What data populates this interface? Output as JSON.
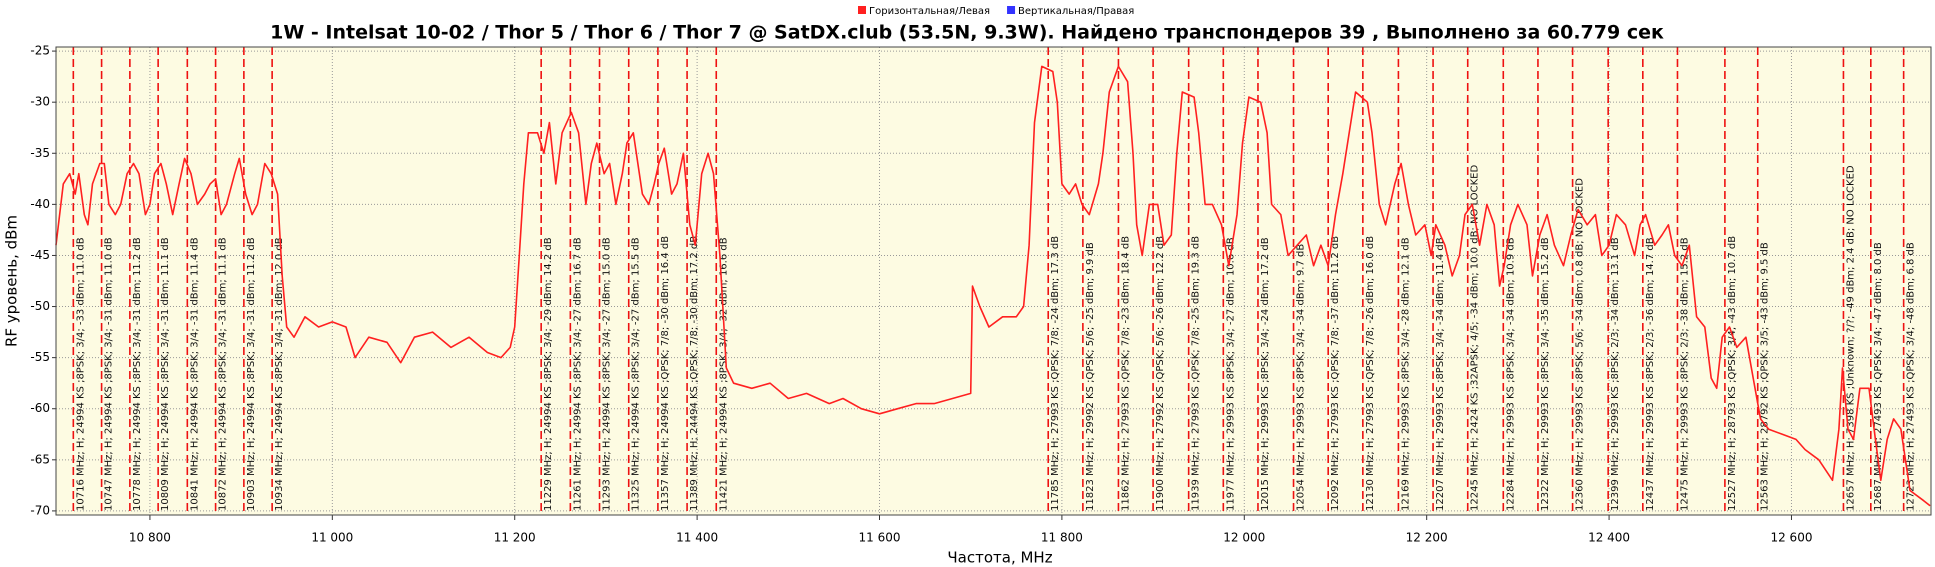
{
  "chart_data": {
    "type": "line",
    "title": "1W - Intelsat 10-02 / Thor 5 / Thor 6 / Thor 7 @ SatDX.club (53.5N, 9.3W). Найдено транспондеров 39 , Выполнено за 60.779 сек",
    "x_label": "Частота, MHz",
    "y_label": "RF уровень, dBm",
    "legend": "top",
    "grid": true,
    "xlim": [
      10697,
      12753
    ],
    "ylim": [
      -70.4,
      -24.6
    ],
    "xticks": [
      {
        "value": 10800,
        "label": "10 800"
      },
      {
        "value": 11000,
        "label": "11 000"
      },
      {
        "value": 11200,
        "label": "11 200"
      },
      {
        "value": 11400,
        "label": "11 400"
      },
      {
        "value": 11600,
        "label": "11 600"
      },
      {
        "value": 11800,
        "label": "11 800"
      },
      {
        "value": 12000,
        "label": "12 000"
      },
      {
        "value": 12200,
        "label": "12 200"
      },
      {
        "value": 12400,
        "label": "12 400"
      },
      {
        "value": 12600,
        "label": "12 600"
      }
    ],
    "yticks": [
      -25,
      -30,
      -35,
      -40,
      -45,
      -50,
      -55,
      -60,
      -65,
      -70
    ],
    "series": [
      {
        "name": "Горизонтальная/Левая",
        "color": "#ff2020",
        "x": [
          10697,
          10705,
          10712,
          10718,
          10722,
          10728,
          10732,
          10737,
          10745,
          10750,
          10755,
          10762,
          10768,
          10775,
          10782,
          10788,
          10795,
          10800,
          10805,
          10812,
          10818,
          10825,
          10832,
          10838,
          10845,
          10852,
          10860,
          10866,
          10872,
          10878,
          10884,
          10893,
          10898,
          10905,
          10912,
          10918,
          10926,
          10933,
          10940,
          10945,
          10950,
          10958,
          10970,
          10985,
          11000,
          11015,
          11025,
          11040,
          11060,
          11075,
          11090,
          11110,
          11130,
          11150,
          11170,
          11185,
          11195,
          11200,
          11205,
          11210,
          11215,
          11225,
          11232,
          11238,
          11245,
          11252,
          11262,
          11270,
          11278,
          11284,
          11290,
          11298,
          11304,
          11311,
          11318,
          11323,
          11330,
          11340,
          11347,
          11353,
          11358,
          11364,
          11372,
          11378,
          11385,
          11392,
          11398,
          11405,
          11412,
          11418,
          11425,
          11432,
          11440,
          11460,
          11480,
          11500,
          11520,
          11545,
          11560,
          11580,
          11600,
          11620,
          11640,
          11660,
          11680,
          11700,
          11702,
          11710,
          11720,
          11735,
          11750,
          11758,
          11764,
          11770,
          11778,
          11790,
          11795,
          11800,
          11808,
          11815,
          11822,
          11830,
          11840,
          11845,
          11852,
          11862,
          11872,
          11878,
          11882,
          11888,
          11896,
          11905,
          11912,
          11920,
          11926,
          11932,
          11945,
          11950,
          11957,
          11965,
          11975,
          11983,
          11992,
          11998,
          12005,
          12018,
          12025,
          12030,
          12040,
          12048,
          12058,
          12068,
          12076,
          12084,
          12092,
          12100,
          12108,
          12115,
          12122,
          12135,
          12140,
          12148,
          12155,
          12165,
          12172,
          12180,
          12188,
          12198,
          12205,
          12210,
          12220,
          12228,
          12236,
          12242,
          12250,
          12258,
          12266,
          12274,
          12280,
          12285,
          12292,
          12300,
          12310,
          12316,
          12324,
          12332,
          12340,
          12350,
          12358,
          12366,
          12376,
          12385,
          12392,
          12400,
          12408,
          12418,
          12428,
          12434,
          12440,
          12450,
          12458,
          12465,
          12472,
          12480,
          12488,
          12496,
          12505,
          12512,
          12518,
          12524,
          12532,
          12540,
          12550,
          12558,
          12566,
          12575,
          12590,
          12605,
          12615,
          12630,
          12645,
          12652,
          12656,
          12662,
          12668,
          12675,
          12685,
          12692,
          12698,
          12705,
          12712,
          12720,
          12730,
          12745,
          12752
        ],
        "values": [
          -44,
          -38,
          -37,
          -39,
          -37,
          -41,
          -42,
          -38,
          -36,
          -36,
          -40,
          -41,
          -40,
          -37,
          -36,
          -37,
          -41,
          -40,
          -37,
          -36,
          -38,
          -41,
          -38,
          -35.5,
          -37,
          -40,
          -39,
          -38,
          -37.5,
          -41,
          -40,
          -37,
          -35.5,
          -39,
          -41,
          -40,
          -36,
          -37,
          -39,
          -47,
          -52,
          -53,
          -51,
          -52,
          -51.5,
          -52,
          -55,
          -53,
          -53.5,
          -55.5,
          -53,
          -52.5,
          -54,
          -53,
          -54.5,
          -55,
          -54,
          -52,
          -45,
          -38,
          -33,
          -33,
          -35,
          -32,
          -38,
          -33,
          -31,
          -33,
          -40,
          -36,
          -34,
          -37,
          -36,
          -40,
          -37,
          -34,
          -33,
          -39,
          -40,
          -38,
          -36,
          -34.5,
          -39,
          -38,
          -35,
          -42,
          -44,
          -37,
          -35,
          -37,
          -45,
          -56,
          -57.5,
          -58,
          -57.5,
          -59,
          -58.5,
          -59.5,
          -59,
          -60,
          -60.5,
          -60,
          -59.5,
          -59.5,
          -59,
          -58.5,
          -48,
          -50,
          -52,
          -51,
          -51,
          -50,
          -44,
          -32,
          -26.5,
          -27,
          -30,
          -38,
          -39,
          -38,
          -40,
          -41,
          -38,
          -35,
          -29,
          -26.5,
          -28,
          -35,
          -42,
          -45,
          -40,
          -40,
          -44,
          -43,
          -35,
          -29,
          -29.5,
          -33,
          -40,
          -40,
          -42,
          -46,
          -41,
          -34,
          -29.5,
          -30,
          -33,
          -40,
          -41,
          -45,
          -44,
          -43,
          -46,
          -44,
          -46,
          -41,
          -37,
          -33,
          -29,
          -30,
          -33,
          -40,
          -42,
          -38,
          -36,
          -40,
          -43,
          -42,
          -45,
          -42,
          -44,
          -47,
          -45,
          -41,
          -40,
          -44,
          -40,
          -42,
          -48,
          -46,
          -42,
          -40,
          -42,
          -47,
          -43,
          -41,
          -44,
          -46,
          -43,
          -40.5,
          -42,
          -41,
          -45,
          -44,
          -41,
          -42,
          -45,
          -42,
          -41,
          -44,
          -43,
          -42,
          -45,
          -46,
          -44,
          -51,
          -52,
          -57,
          -58,
          -53,
          -52,
          -54,
          -53,
          -57,
          -61,
          -62,
          -62.5,
          -63,
          -64,
          -65,
          -67,
          -62,
          -56,
          -62,
          -63,
          -58,
          -58,
          -63,
          -67,
          -63,
          -61,
          -62,
          -68,
          -69,
          -69.5
        ]
      },
      {
        "name": "Вертикальная/Правая",
        "color": "#3333ff",
        "x": [],
        "values": []
      }
    ],
    "transponders": [
      {
        "freq": 10716,
        "label": "10716 MHz; H; 24994 KS ;8PSK; 3/4; -33 dBm; 11.0 dB"
      },
      {
        "freq": 10747,
        "label": "10747 MHz; H; 24994 KS ;8PSK; 3/4; -31 dBm; 11.0 dB"
      },
      {
        "freq": 10778,
        "label": "10778 MHz; H; 24994 KS ;8PSK; 3/4; -31 dBm; 11.2 dB"
      },
      {
        "freq": 10809,
        "label": "10809 MHz; H; 24994 KS ;8PSK; 3/4; -31 dBm; 11.1 dB"
      },
      {
        "freq": 10841,
        "label": "10841 MHz; H; 24994 KS ;8PSK; 3/4; -31 dBm; 11.4 dB"
      },
      {
        "freq": 10872,
        "label": "10872 MHz; H; 24994 KS ;8PSK; 3/4; -31 dBm; 11.1 dB"
      },
      {
        "freq": 10903,
        "label": "10903 MHz; H; 24994 KS ;8PSK; 3/4; -31 dBm; 11.2 dB"
      },
      {
        "freq": 10934,
        "label": "10934 MHz; H; 24994 KS ;8PSK; 3/4; -31 dBm; 12.0 dB"
      },
      {
        "freq": 11229,
        "label": "11229 MHz; H; 24994 KS ;8PSK; 3/4; -29 dBm; 14.2 dB"
      },
      {
        "freq": 11261,
        "label": "11261 MHz; H; 24994 KS ;8PSK; 3/4; -27 dBm; 16.7 dB"
      },
      {
        "freq": 11293,
        "label": "11293 MHz; H; 24994 KS ;8PSK; 3/4; -27 dBm; 15.0 dB"
      },
      {
        "freq": 11325,
        "label": "11325 MHz; H; 24994 KS ;8PSK; 3/4; -27 dBm; 15.5 dB"
      },
      {
        "freq": 11357,
        "label": "11357 MHz; H; 24994 KS ;QPSK; 7/8; -30 dBm; 16.4 dB"
      },
      {
        "freq": 11389,
        "label": "11389 MHz; H; 24494 KS ;QPSK; 7/8; -30 dBm; 17.2 dB"
      },
      {
        "freq": 11421,
        "label": "11421 MHz; H; 24994 KS ;8PSK; 3/4; -32 dBm; 16.6 dB"
      },
      {
        "freq": 11785,
        "label": "11785 MHz; H; 27993 KS ;QPSK; 7/8; -24 dBm; 17.3 dB"
      },
      {
        "freq": 11823,
        "label": "11823 MHz; H; 29992 KS ;QPSK; 5/6; -25 dBm; 9.9 dB"
      },
      {
        "freq": 11862,
        "label": "11862 MHz; H; 27993 KS ;QPSK; 7/8; -23 dBm; 18.4 dB"
      },
      {
        "freq": 11900,
        "label": "11900 MHz; H; 27992 KS ;QPSK; 5/6; -26 dBm; 12.2 dB"
      },
      {
        "freq": 11939,
        "label": "11939 MHz; H; 27993 KS ;QPSK; 7/8; -25 dBm; 19.3 dB"
      },
      {
        "freq": 11977,
        "label": "11977 MHz; H; 29993 KS ;8PSK; 3/4; -27 dBm; 10.6 dB"
      },
      {
        "freq": 12015,
        "label": "12015 MHz; H; 29993 KS ;8PSK; 3/4; -24 dBm; 17.2 dB"
      },
      {
        "freq": 12054,
        "label": "12054 MHz; H; 29993 KS ;8PSK; 3/4; -34 dBm; 9.7 dB"
      },
      {
        "freq": 12092,
        "label": "12092 MHz; H; 27993 KS ;QPSK; 7/8; -37 dBm; 11.2 dB"
      },
      {
        "freq": 12130,
        "label": "12130 MHz; H; 27993 KS ;QPSK; 7/8; -26 dBm; 16.0 dB"
      },
      {
        "freq": 12169,
        "label": "12169 MHz; H; 29993 KS ;8PSK; 3/4; -28 dBm; 12.1 dB"
      },
      {
        "freq": 12207,
        "label": "12207 MHz; H; 29993 KS ;8PSK; 3/4; -34 dBm; 11.4 dB"
      },
      {
        "freq": 12245,
        "label": "12245 MHz; H; 2424 KS ;32APSK; 4/5; -34 dBm; 10.0 dB; NO LOCKED"
      },
      {
        "freq": 12284,
        "label": "12284 MHz; H; 29993 KS ;8PSK; 3/4; -34 dBm; 10.9 dB"
      },
      {
        "freq": 12322,
        "label": "12322 MHz; H; 29993 KS ;8PSK; 3/4; -35 dBm; 15.2 dB"
      },
      {
        "freq": 12360,
        "label": "12360 MHz; H; 29993 KS ;8PSK; 5/6; -34 dBm; 0.8 dB; NO LOCKED"
      },
      {
        "freq": 12399,
        "label": "12399 MHz; H; 29993 KS ;8PSK; 2/3; -34 dBm; 13.1 dB"
      },
      {
        "freq": 12437,
        "label": "12437 MHz; H; 29993 KS ;8PSK; 2/3; -36 dBm; 14.7 dB"
      },
      {
        "freq": 12475,
        "label": "12475 MHz; H; 29993 KS ;8PSK; 2/3; -38 dBm; 15.2 dB"
      },
      {
        "freq": 12527,
        "label": "12527 MHz; H; 28793 KS ;QPSK; 3/4; -43 dBm; 10.7 dB"
      },
      {
        "freq": 12563,
        "label": "12563 MHz; H; 28792 KS ;QPSK; 3/5; -43 dBm; 9.5 dB"
      },
      {
        "freq": 12657,
        "label": "12657 MHz; H; 7398 KS ;Unknown; ?/?; -49 dBm; 2.4 dB; NO LOCKED"
      },
      {
        "freq": 12687,
        "label": "12687 MHz; H; 27493 KS ;QPSK; 3/4; -47 dBm; 8.0 dB"
      },
      {
        "freq": 12723,
        "label": "12723 MHz; H; 27493 KS ;QPSK; 3/4; -48 dBm; 6.8 dB"
      }
    ]
  }
}
